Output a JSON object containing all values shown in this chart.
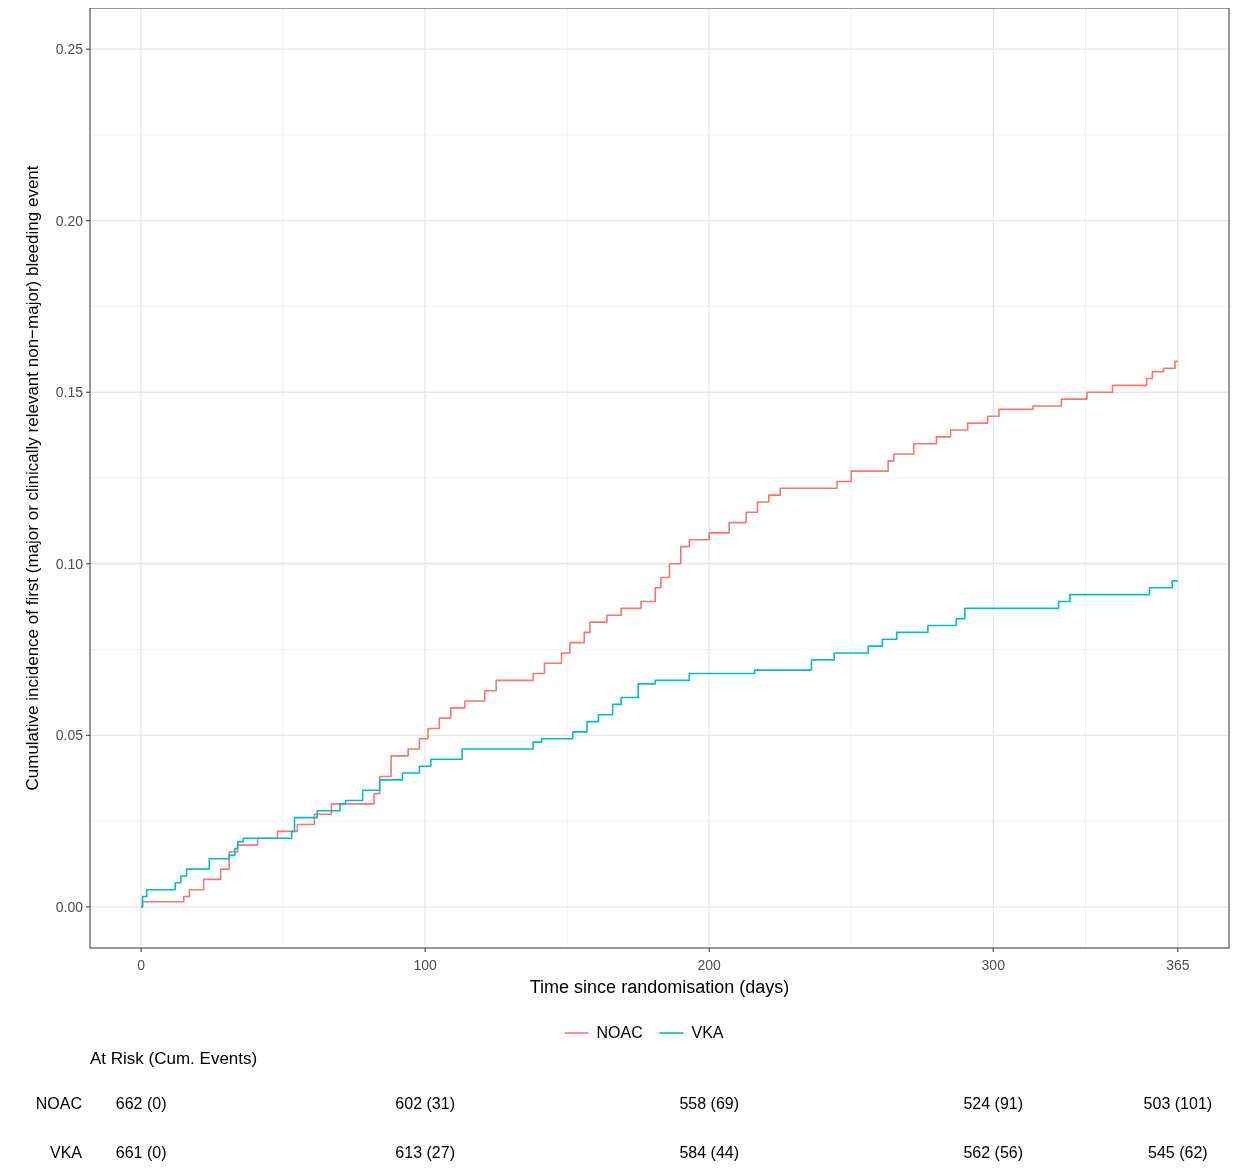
{
  "chart_data": {
    "type": "step",
    "xlabel": "Time since randomisation (days)",
    "ylabel": "Cumulative incidence of first (major or clinically relevant non−major) bleeding event",
    "xlim": [
      -18,
      383
    ],
    "ylim": [
      -0.012,
      0.262
    ],
    "xticks": [
      0,
      100,
      200,
      300,
      365
    ],
    "yticks": [
      {
        "value": 0,
        "label": "0.00"
      },
      {
        "value": 0.05,
        "label": "0.05"
      },
      {
        "value": 0.1,
        "label": "0.10"
      },
      {
        "value": 0.15,
        "label": "0.15"
      },
      {
        "value": 0.2,
        "label": "0.20"
      },
      {
        "value": 0.25,
        "label": "0.25"
      }
    ],
    "grid": true,
    "legend": "bottom",
    "line_style": "solid",
    "marker": "none",
    "series": [
      {
        "name": "NOAC",
        "color": "#f8766d",
        "x": [
          0,
          0.5,
          15,
          17,
          22,
          28,
          31,
          34,
          41,
          48,
          55,
          61,
          67,
          82,
          84,
          88,
          94,
          98,
          101,
          105,
          109,
          114,
          121,
          125,
          138,
          142,
          148,
          151,
          156,
          158,
          164,
          169,
          176,
          181,
          183,
          186,
          190,
          193,
          200,
          207,
          213,
          217,
          221,
          225,
          245,
          250,
          263,
          265,
          272,
          280,
          285,
          291,
          298,
          302,
          314,
          324,
          333,
          342,
          354,
          356,
          360,
          364,
          365
        ],
        "values": [
          0,
          0.0015,
          0.003,
          0.005,
          0.008,
          0.011,
          0.016,
          0.018,
          0.02,
          0.022,
          0.024,
          0.027,
          0.03,
          0.033,
          0.038,
          0.044,
          0.046,
          0.049,
          0.052,
          0.055,
          0.058,
          0.06,
          0.063,
          0.066,
          0.068,
          0.071,
          0.074,
          0.077,
          0.08,
          0.083,
          0.085,
          0.087,
          0.089,
          0.093,
          0.096,
          0.1,
          0.105,
          0.107,
          0.109,
          0.112,
          0.115,
          0.118,
          0.12,
          0.122,
          0.124,
          0.127,
          0.13,
          0.132,
          0.135,
          0.137,
          0.139,
          0.141,
          0.143,
          0.145,
          0.146,
          0.148,
          0.15,
          0.152,
          0.154,
          0.156,
          0.157,
          0.159,
          0.159
        ]
      },
      {
        "name": "VKA",
        "color": "#00bfc4",
        "x": [
          0,
          0.5,
          2,
          12,
          14,
          16,
          24,
          31,
          33,
          34,
          36,
          53,
          54,
          62,
          70,
          72,
          78,
          84,
          92,
          98,
          102,
          113,
          138,
          141,
          152,
          157,
          161,
          166,
          169,
          175,
          181,
          193,
          216,
          236,
          244,
          256,
          261,
          266,
          277,
          287,
          290,
          323,
          327,
          355,
          363,
          365
        ],
        "values": [
          0,
          0.003,
          0.005,
          0.007,
          0.009,
          0.011,
          0.014,
          0.015,
          0.017,
          0.019,
          0.02,
          0.022,
          0.026,
          0.028,
          0.03,
          0.031,
          0.034,
          0.037,
          0.039,
          0.041,
          0.043,
          0.046,
          0.048,
          0.049,
          0.051,
          0.054,
          0.056,
          0.059,
          0.061,
          0.065,
          0.066,
          0.068,
          0.069,
          0.072,
          0.074,
          0.076,
          0.078,
          0.08,
          0.082,
          0.084,
          0.087,
          0.089,
          0.091,
          0.093,
          0.095,
          0.095
        ]
      }
    ],
    "annotations": [
      "At Risk (Cum. Events)",
      "NOAC",
      "662 (0)",
      "602 (31)",
      "558 (69)",
      "524 (91)",
      "503 (101)",
      "VKA",
      "661 (0)",
      "613 (27)",
      "584 (44)",
      "562 (56)",
      "545 (62)"
    ]
  }
}
